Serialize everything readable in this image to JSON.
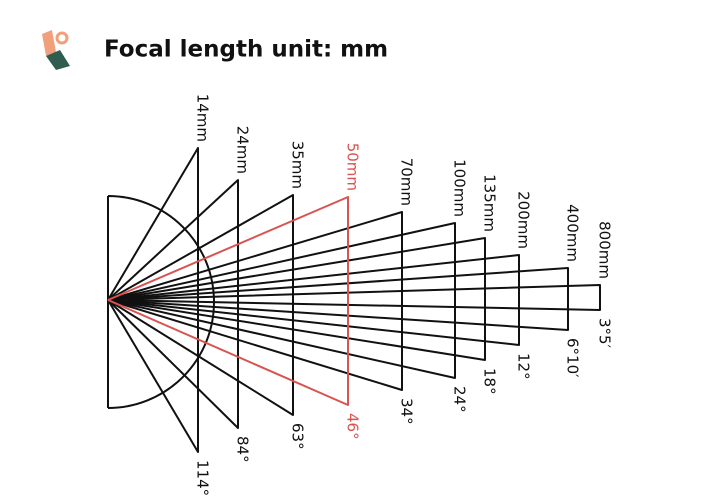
{
  "header": {
    "title": "Focal length unit: mm"
  },
  "lenses": [
    {
      "focal": "14mm",
      "angle": "114°",
      "color": "#111111"
    },
    {
      "focal": "24mm",
      "angle": "84°",
      "color": "#111111"
    },
    {
      "focal": "35mm",
      "angle": "63°",
      "color": "#111111"
    },
    {
      "focal": "50mm",
      "angle": "46°",
      "color": "#d9534f"
    },
    {
      "focal": "70mm",
      "angle": "34°",
      "color": "#111111"
    },
    {
      "focal": "100mm",
      "angle": "24°",
      "color": "#111111"
    },
    {
      "focal": "135mm",
      "angle": "18°",
      "color": "#111111"
    },
    {
      "focal": "200mm",
      "angle": "12°",
      "color": "#111111"
    },
    {
      "focal": "400mm",
      "angle": "6°10′",
      "color": "#111111"
    },
    {
      "focal": "800mm",
      "angle": "3°5′",
      "color": "#111111"
    }
  ]
}
